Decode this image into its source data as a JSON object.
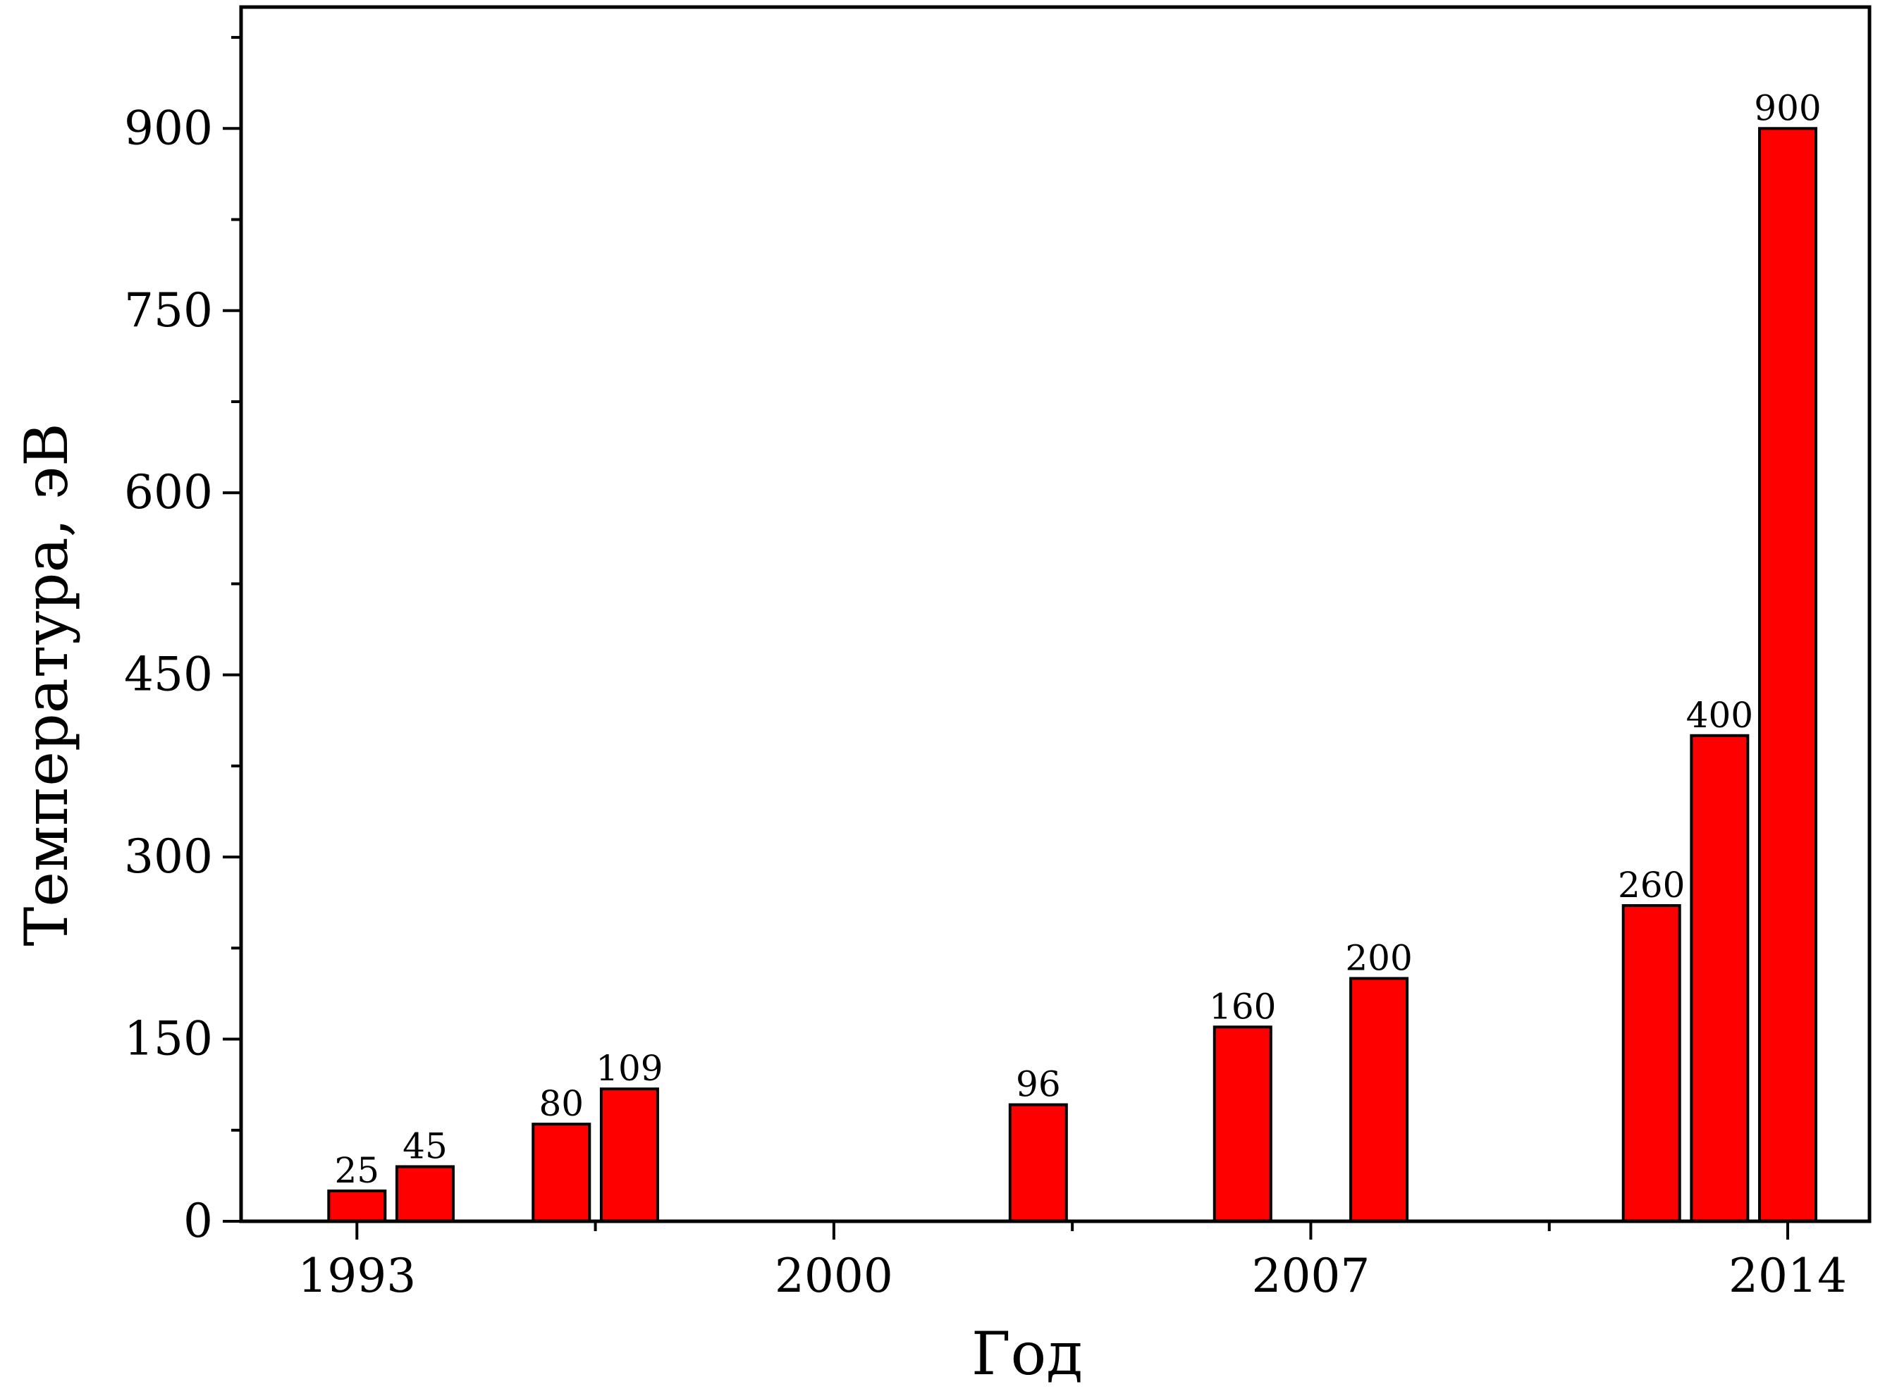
{
  "chart_data": {
    "type": "bar",
    "xlabel": "Год",
    "ylabel": "Температура, эВ",
    "xlim": [
      1991.3,
      2015.2
    ],
    "ylim": [
      0,
      1000
    ],
    "x_ticks": [
      1993,
      2000,
      2007,
      2014
    ],
    "y_ticks": [
      0,
      150,
      300,
      450,
      600,
      750,
      900
    ],
    "bar_color": "#ff0000",
    "grid": false,
    "legend": "none",
    "bars": [
      {
        "x": 1993,
        "value": 25,
        "label": "25"
      },
      {
        "x": 1994,
        "value": 45,
        "label": "45"
      },
      {
        "x": 1996,
        "value": 80,
        "label": "80"
      },
      {
        "x": 1997,
        "value": 109,
        "label": "109"
      },
      {
        "x": 2003,
        "value": 96,
        "label": "96"
      },
      {
        "x": 2006,
        "value": 160,
        "label": "160"
      },
      {
        "x": 2008,
        "value": 200,
        "label": "200"
      },
      {
        "x": 2012,
        "value": 260,
        "label": "260"
      },
      {
        "x": 2013,
        "value": 400,
        "label": "400"
      },
      {
        "x": 2014,
        "value": 900,
        "label": "900"
      }
    ]
  }
}
